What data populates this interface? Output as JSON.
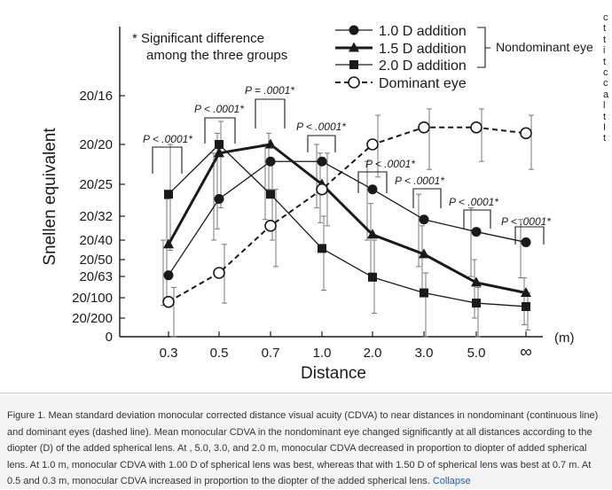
{
  "chart_data": {
    "type": "line",
    "ylabel": "Snellen equivalent",
    "xlabel": "Distance",
    "x_unit": "(m)",
    "categories": [
      "0.3",
      "0.5",
      "0.7",
      "1.0",
      "2.0",
      "3.0",
      "5.0",
      "∞"
    ],
    "y_ticks": [
      "20/16",
      "20/20",
      "20/25",
      "20/32",
      "20/40",
      "20/50",
      "20/63",
      "20/100",
      "20/200",
      "0"
    ],
    "series": [
      {
        "name": "1.0 D addition",
        "marker": "circle",
        "line": "thin-solid",
        "values": [
          "20/62",
          "20/28",
          "20/22",
          "20/22",
          "20/26",
          "20/33",
          "20/37",
          "20/41"
        ],
        "sd_upper": [
          "20/40",
          "20/21",
          "20/20",
          "20/20",
          "20/22",
          "20/27",
          "20/30",
          "20/33"
        ],
        "sd_lower": [
          "20/130",
          "20/40",
          "20/33",
          "20/30",
          "20/40",
          "20/55",
          "20/63",
          "20/65"
        ]
      },
      {
        "name": "1.5 D addition",
        "marker": "triangle",
        "line": "thick-solid",
        "values": [
          "20/42",
          "20/21",
          "20/20",
          "20/25",
          "20/38",
          "20/47",
          "20/72",
          "20/90"
        ],
        "sd_upper": [
          "20/28",
          "20/19",
          "20/19",
          "20/21",
          "20/29",
          "20/35",
          "20/50",
          "20/65"
        ],
        "sd_lower": [
          "20/100",
          "20/36",
          "20/26",
          "20/34",
          "20/60",
          "20/90",
          "20/200",
          "20/250"
        ]
      },
      {
        "name": "2.0 D addition",
        "marker": "square",
        "line": "thin-solid",
        "values": [
          "20/27",
          "20/20",
          "20/27",
          "20/44",
          "20/64",
          "20/90",
          "20/120",
          "20/135"
        ],
        "sd_upper": [
          "20/20",
          "20/18",
          "20/22",
          "20/32",
          "20/40",
          "20/60",
          "20/80",
          "20/90"
        ],
        "sd_lower": [
          "20/45",
          "20/30",
          "20/40",
          "20/85",
          "20/170",
          "0",
          "0",
          "20/300"
        ]
      },
      {
        "name": "Dominant eye",
        "marker": "open-circle",
        "line": "dashed",
        "values": [
          "20/115",
          "20/60",
          "20/35",
          "20/26",
          "20/20",
          "20/18.5",
          "20/18.5",
          "20/19"
        ],
        "sd_upper": [
          "20/80",
          "20/42",
          "20/26",
          "20/21",
          "20/17.5",
          "20/17",
          "20/17",
          "20/17.5"
        ],
        "sd_lower": [
          "0",
          "20/120",
          "20/55",
          "20/35",
          "20/24",
          "20/23",
          "20/22",
          "20/23"
        ]
      }
    ],
    "legend": {
      "position": "top-right",
      "bracket_label": "Nondominant eye"
    },
    "annotations": {
      "note_line1": "* Significant difference",
      "note_line2": "among the three groups",
      "p_values": [
        "P < .0001*",
        "P < .0001*",
        "P = .0001*",
        "P < .0001*",
        "P < .0001*",
        "P < .0001*",
        "P < .0001*",
        "P < .0001*"
      ]
    }
  },
  "side_text": [
    "c",
    "t",
    "t",
    "i",
    "t",
    "c",
    "c",
    "a",
    "l",
    "t",
    "I",
    "t"
  ],
  "caption": {
    "text": "Figure 1. Mean standard deviation monocular corrected distance visual acuity (CDVA) to near distances in nondominant (continuous line) and dominant eyes (dashed line). Mean monocular CDVA in the nondominant eye changed significantly at all distances according to the diopter (D) of the added spherical lens. At , 5.0, 3.0, and 2.0 m, monocular CDVA decreased in proportion to diopter of added spherical lens. At 1.0 m, monocular CDVA with 1.00 D of spherical lens was best, whereas that with 1.50 D of spherical lens was best at 0.7 m. At 0.5 and 0.3 m, monocular CDVA increased in proportion to the diopter of the added spherical lens.",
    "link_label": "Collapse"
  },
  "colors": {
    "ink": "#1a1a1a",
    "error_bar": "#777777",
    "link": "#1a5fb4",
    "caption_bg": "#f4f4f4"
  }
}
